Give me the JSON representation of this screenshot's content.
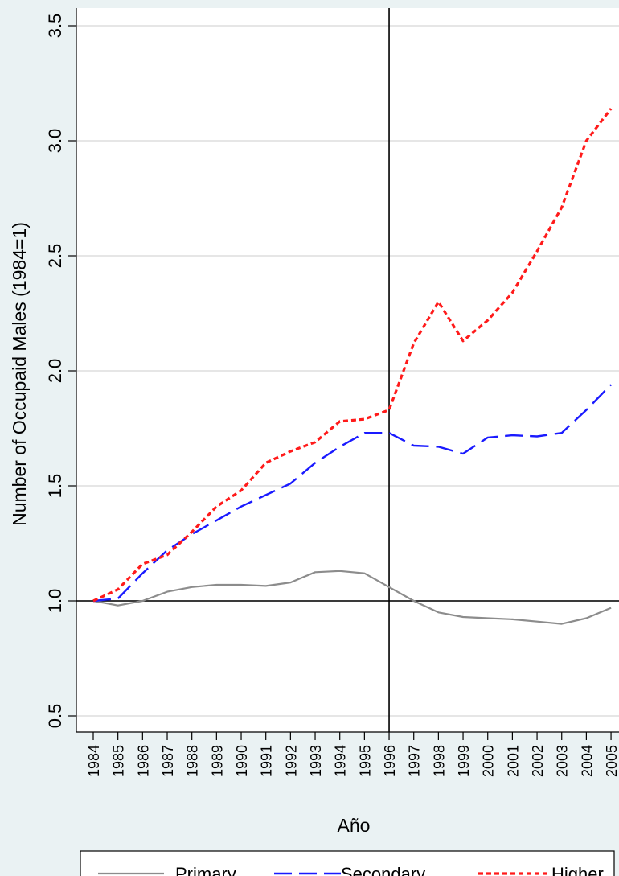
{
  "chart_data": {
    "type": "line",
    "title": "",
    "xlabel": "Año",
    "ylabel": "Number of Occupaid Males (1984=1)",
    "x": [
      "1984",
      "1985",
      "1986",
      "1987",
      "1988",
      "1989",
      "1990",
      "1991",
      "1992",
      "1993",
      "1994",
      "1995",
      "1996",
      "1997",
      "1998",
      "1999",
      "2000",
      "2001",
      "2002",
      "2003",
      "2004",
      "2005"
    ],
    "ylim": [
      0.5,
      3.5
    ],
    "yticks": [
      "0.5",
      "1.0",
      "1.5",
      "2.0",
      "2.5",
      "3.0",
      "3.5"
    ],
    "grid": true,
    "legend_position": "bottom",
    "reference_lines": {
      "horizontal_y": 1.0,
      "vertical_x": "1996"
    },
    "series": [
      {
        "name": "Primary",
        "style": "solid",
        "color": "#8c8c8c",
        "values": [
          1.0,
          0.98,
          1.0,
          1.04,
          1.06,
          1.07,
          1.07,
          1.065,
          1.08,
          1.125,
          1.13,
          1.12,
          1.06,
          1.0,
          0.95,
          0.93,
          0.925,
          0.92,
          0.91,
          0.9,
          0.925,
          0.97
        ]
      },
      {
        "name": "Secondary",
        "style": "dashed",
        "color": "#1a1aff",
        "values": [
          1.0,
          1.01,
          1.12,
          1.22,
          1.29,
          1.35,
          1.41,
          1.46,
          1.51,
          1.6,
          1.67,
          1.73,
          1.73,
          1.675,
          1.67,
          1.64,
          1.71,
          1.72,
          1.715,
          1.73,
          1.83,
          1.94
        ]
      },
      {
        "name": "Higher",
        "style": "dotted",
        "color": "#ff1a1a",
        "values": [
          1.0,
          1.05,
          1.16,
          1.2,
          1.3,
          1.41,
          1.48,
          1.6,
          1.65,
          1.69,
          1.78,
          1.79,
          1.83,
          2.12,
          2.3,
          2.13,
          2.22,
          2.34,
          2.52,
          2.71,
          3.0,
          3.14
        ]
      }
    ]
  }
}
